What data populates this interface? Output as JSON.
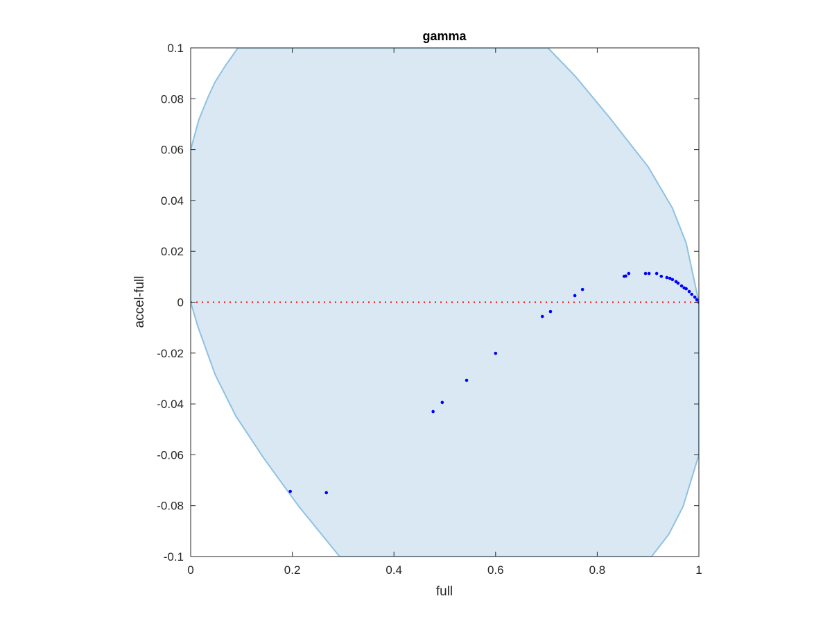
{
  "chart_data": {
    "type": "scatter",
    "title": "gamma",
    "xlabel": "full",
    "ylabel": "accel-full",
    "xlim": [
      0,
      1
    ],
    "ylim": [
      -0.1,
      0.1
    ],
    "xticks": [
      "0",
      "0.2",
      "0.4",
      "0.6",
      "0.8",
      "1"
    ],
    "xtick_values": [
      0,
      0.2,
      0.4,
      0.6,
      0.8,
      1
    ],
    "yticks": [
      "-0.1",
      "-0.08",
      "-0.06",
      "-0.04",
      "-0.02",
      "0",
      "0.02",
      "0.04",
      "0.06",
      "0.08",
      "0.1"
    ],
    "ytick_values": [
      -0.1,
      -0.08,
      -0.06,
      -0.04,
      -0.02,
      0,
      0.02,
      0.04,
      0.06,
      0.08,
      0.1
    ],
    "grid": false,
    "colors": {
      "points": "#0000ff",
      "region_fill": "#d9e8f3",
      "region_edge": "#8fc1e3",
      "reference_line": "#ff0000"
    },
    "reference_line_y": 0,
    "region_boundary": [
      [
        0,
        0.06
      ],
      [
        0.016,
        0.0717
      ],
      [
        0.034,
        0.0806
      ],
      [
        0.048,
        0.0866
      ],
      [
        0.068,
        0.0929
      ],
      [
        0.093,
        0.1
      ],
      [
        0.703,
        0.1
      ],
      [
        0.757,
        0.0888
      ],
      [
        0.825,
        0.0724
      ],
      [
        0.9,
        0.0533
      ],
      [
        0.948,
        0.037
      ],
      [
        0.975,
        0.0233
      ],
      [
        1,
        0
      ],
      [
        1,
        -0.06
      ],
      [
        0.969,
        -0.0803
      ],
      [
        0.941,
        -0.0912
      ],
      [
        0.907,
        -0.1
      ],
      [
        0.293,
        -0.1
      ],
      [
        0.212,
        -0.0801
      ],
      [
        0.143,
        -0.0611
      ],
      [
        0.089,
        -0.0448
      ],
      [
        0.048,
        -0.0284
      ],
      [
        0.014,
        -0.0095
      ],
      [
        0,
        0
      ]
    ],
    "points": [
      [
        0.196,
        -0.0744
      ],
      [
        0.267,
        -0.0749
      ],
      [
        0.477,
        -0.043
      ],
      [
        0.495,
        -0.0394
      ],
      [
        0.543,
        -0.0307
      ],
      [
        0.6,
        -0.0201
      ],
      [
        0.692,
        -0.0056
      ],
      [
        0.708,
        -0.0037
      ],
      [
        0.756,
        0.0026
      ],
      [
        0.771,
        0.005
      ],
      [
        0.853,
        0.0102
      ],
      [
        0.856,
        0.0103
      ],
      [
        0.862,
        0.0113
      ],
      [
        0.895,
        0.0113
      ],
      [
        0.902,
        0.0113
      ],
      [
        0.917,
        0.0113
      ],
      [
        0.926,
        0.0102
      ],
      [
        0.937,
        0.0097
      ],
      [
        0.943,
        0.0094
      ],
      [
        0.948,
        0.0089
      ],
      [
        0.955,
        0.0081
      ],
      [
        0.959,
        0.0075
      ],
      [
        0.966,
        0.0064
      ],
      [
        0.971,
        0.0056
      ],
      [
        0.975,
        0.0053
      ],
      [
        0.981,
        0.0042
      ],
      [
        0.986,
        0.0031
      ],
      [
        0.992,
        0.002
      ],
      [
        0.996,
        0.001
      ],
      [
        1.0,
        0.0
      ]
    ]
  }
}
